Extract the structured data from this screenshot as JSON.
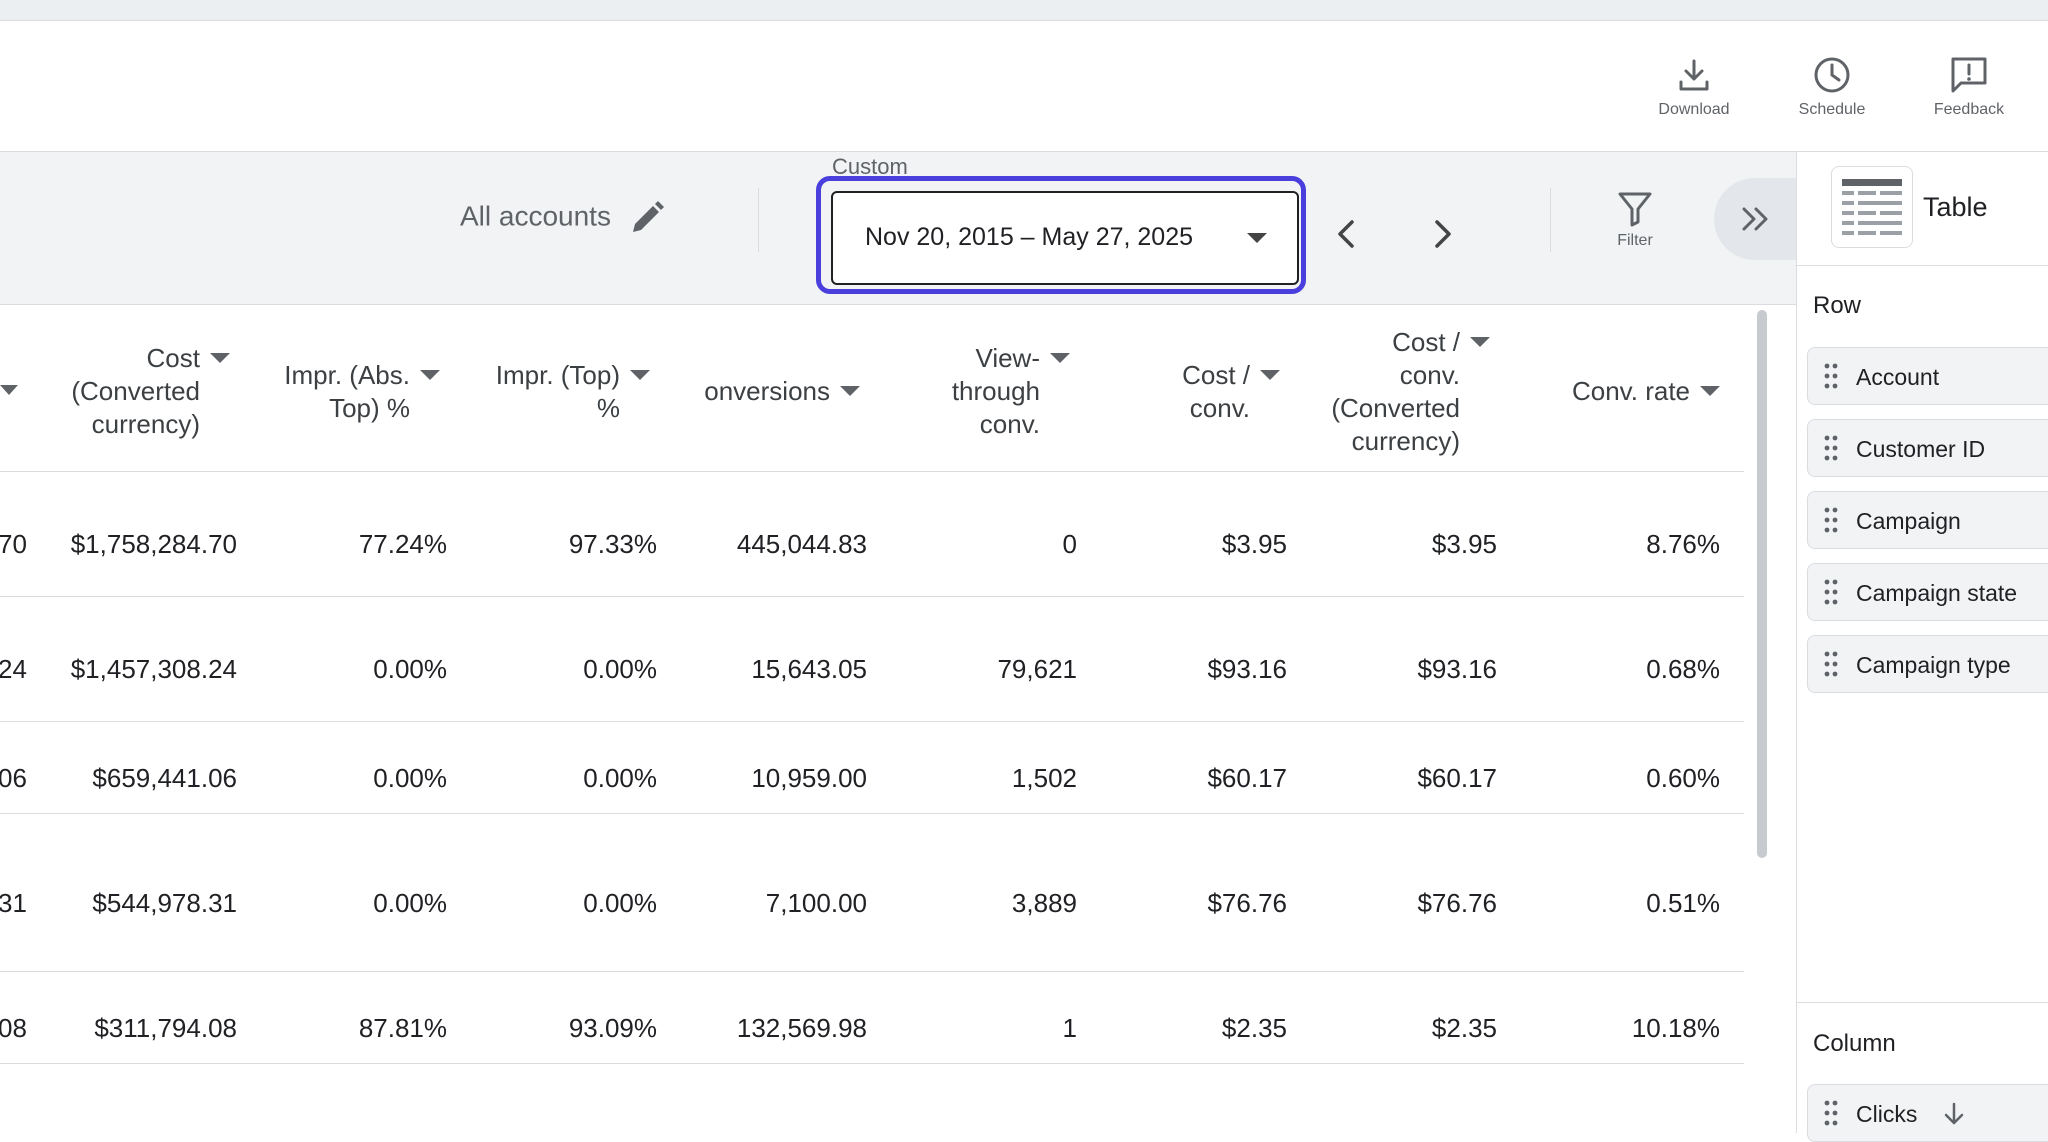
{
  "toolbar": {
    "download_label": "Download",
    "schedule_label": "Schedule",
    "feedback_label": "Feedback"
  },
  "filterbar": {
    "accounts_label": "All accounts",
    "date_range_label": "Custom",
    "date_range_value": "Nov 20, 2015 – May 27, 2025",
    "filter_label": "Filter"
  },
  "table": {
    "headers": [
      [
        "Cost",
        "(Converted",
        "currency)"
      ],
      [
        "Impr. (Abs.",
        "Top) %"
      ],
      [
        "Impr. (Top)",
        "%"
      ],
      [
        "onversions"
      ],
      [
        "View-",
        "through",
        "conv."
      ],
      [
        "Cost /",
        "conv."
      ],
      [
        "Cost /",
        "conv.",
        "(Converted",
        "currency)"
      ],
      [
        "Conv. rate"
      ]
    ],
    "rows": [
      [
        "70",
        "$1,758,284.70",
        "77.24%",
        "97.33%",
        "445,044.83",
        "0",
        "$3.95",
        "$3.95",
        "8.76%"
      ],
      [
        "24",
        "$1,457,308.24",
        "0.00%",
        "0.00%",
        "15,643.05",
        "79,621",
        "$93.16",
        "$93.16",
        "0.68%"
      ],
      [
        "06",
        "$659,441.06",
        "0.00%",
        "0.00%",
        "10,959.00",
        "1,502",
        "$60.17",
        "$60.17",
        "0.60%"
      ],
      [
        "31",
        "$544,978.31",
        "0.00%",
        "0.00%",
        "7,100.00",
        "3,889",
        "$76.76",
        "$76.76",
        "0.51%"
      ],
      [
        "08",
        "$311,794.08",
        "87.81%",
        "93.09%",
        "132,569.98",
        "1",
        "$2.35",
        "$2.35",
        "10.18%"
      ]
    ]
  },
  "panel": {
    "title": "Table",
    "row_section_label": "Row",
    "row_items": [
      "Account",
      "Customer ID",
      "Campaign",
      "Campaign state",
      "Campaign type"
    ],
    "column_section_label": "Column",
    "column_items": [
      "Clicks"
    ]
  },
  "colors": {
    "focus_ring": "#4a3fdc",
    "filterbar_bg": "#f1f3f4"
  }
}
